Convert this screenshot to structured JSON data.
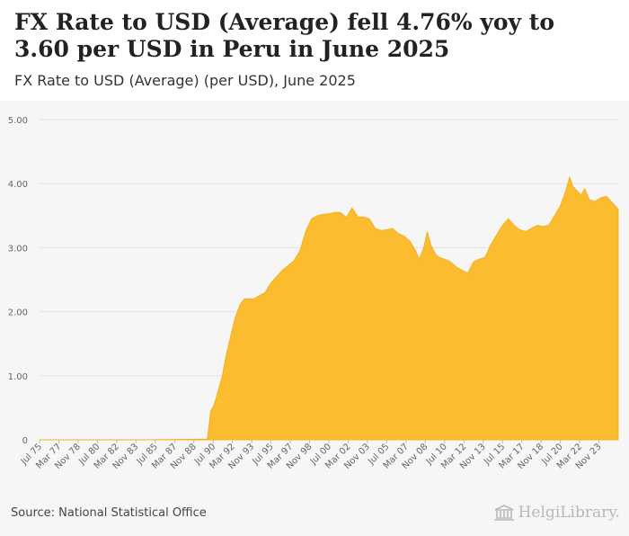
{
  "header": {
    "title": "FX Rate to USD (Average) fell 4.76% yoy to 3.60 per USD in Peru in June 2025",
    "subtitle": "FX Rate to USD (Average) (per USD), June 2025"
  },
  "footer": {
    "source": "Source: National Statistical Office",
    "brand": "HelgiLibrary."
  },
  "colors": {
    "fill": "#fbbc2f",
    "stroke": "#f5b021",
    "grid": "#e2e2e2",
    "axis_text": "#666666"
  },
  "chart_data": {
    "type": "area",
    "title": "FX Rate to USD (Average) (per USD), June 2025",
    "xlabel": "",
    "ylabel": "",
    "ylim": [
      0,
      5
    ],
    "yticks": [
      0,
      1,
      2,
      3,
      4,
      5
    ],
    "ytick_labels": [
      "0",
      "1.00",
      "2.00",
      "3.00",
      "4.00",
      "5.00"
    ],
    "xlim": [
      1975.5,
      2025.5
    ],
    "xtick_labels": [
      "Jul 75",
      "Mar 77",
      "Nov 78",
      "Jul 80",
      "Mar 82",
      "Nov 83",
      "Jul 85",
      "Mar 87",
      "Nov 88",
      "Jul 90",
      "Mar 92",
      "Nov 93",
      "Jul 95",
      "Mar 97",
      "Nov 98",
      "Jul 00",
      "Mar 02",
      "Nov 03",
      "Jul 05",
      "Mar 07",
      "Nov 08",
      "Jul 10",
      "Mar 12",
      "Nov 13",
      "Jul 15",
      "Mar 17",
      "Nov 18",
      "Jul 20",
      "Mar 22",
      "Nov 23"
    ],
    "xtick_positions": [
      1975.5,
      1977.17,
      1978.83,
      1980.5,
      1982.17,
      1983.83,
      1985.5,
      1987.17,
      1988.83,
      1990.5,
      1992.17,
      1993.83,
      1995.5,
      1997.17,
      1998.83,
      2000.5,
      2002.17,
      2003.83,
      2005.5,
      2007.17,
      2008.83,
      2010.5,
      2012.17,
      2013.83,
      2015.5,
      2017.17,
      2018.83,
      2020.5,
      2022.17,
      2023.83
    ],
    "grid": true,
    "series": [
      {
        "name": "FX Rate to USD (Average)",
        "x": [
          1975.5,
          1985.0,
          1990.0,
          1990.3,
          1990.6,
          1991.0,
          1991.3,
          1991.6,
          1992.0,
          1992.4,
          1992.8,
          1993.2,
          1993.6,
          1994.0,
          1994.5,
          1995.0,
          1995.5,
          1996.0,
          1996.5,
          1997.0,
          1997.5,
          1998.0,
          1998.5,
          1999.0,
          1999.5,
          2000.0,
          2000.5,
          2001.0,
          2001.5,
          2002.0,
          2002.5,
          2003.0,
          2003.5,
          2004.0,
          2004.5,
          2005.0,
          2005.5,
          2006.0,
          2006.5,
          2007.0,
          2007.5,
          2008.0,
          2008.3,
          2008.7,
          2009.0,
          2009.3,
          2009.7,
          2010.0,
          2010.5,
          2011.0,
          2011.5,
          2012.0,
          2012.5,
          2013.0,
          2013.5,
          2014.0,
          2014.5,
          2015.0,
          2015.5,
          2016.0,
          2016.5,
          2017.0,
          2017.5,
          2018.0,
          2018.5,
          2019.0,
          2019.5,
          2020.0,
          2020.5,
          2021.0,
          2021.3,
          2021.6,
          2022.0,
          2022.3,
          2022.6,
          2023.0,
          2023.5,
          2024.0,
          2024.5,
          2025.0,
          2025.5
        ],
        "values": [
          0.0,
          0.0,
          0.01,
          0.45,
          0.55,
          0.8,
          1.0,
          1.3,
          1.6,
          1.9,
          2.1,
          2.2,
          2.2,
          2.2,
          2.25,
          2.3,
          2.45,
          2.55,
          2.65,
          2.72,
          2.8,
          2.95,
          3.25,
          3.45,
          3.5,
          3.52,
          3.53,
          3.55,
          3.55,
          3.47,
          3.62,
          3.48,
          3.48,
          3.45,
          3.3,
          3.27,
          3.28,
          3.3,
          3.22,
          3.18,
          3.1,
          2.95,
          2.82,
          3.0,
          3.25,
          3.05,
          2.9,
          2.85,
          2.82,
          2.78,
          2.7,
          2.65,
          2.6,
          2.78,
          2.82,
          2.85,
          3.05,
          3.2,
          3.35,
          3.45,
          3.35,
          3.28,
          3.25,
          3.3,
          3.35,
          3.33,
          3.35,
          3.5,
          3.65,
          3.9,
          4.1,
          3.95,
          3.88,
          3.82,
          3.92,
          3.75,
          3.72,
          3.78,
          3.8,
          3.7,
          3.6
        ]
      }
    ]
  }
}
